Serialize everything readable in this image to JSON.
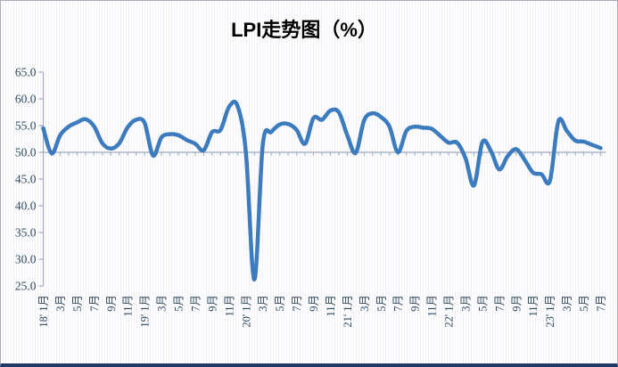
{
  "title": "LPI走势图（%）",
  "frame": {
    "border_color": "#aaaacc",
    "bottom_bar_color": "#1f3864",
    "background_stripe_color": "#f1f1f7"
  },
  "chart_data": {
    "type": "line",
    "title": "LPI走势图（%）",
    "series_name": "LPI",
    "unit": "%",
    "x_interval": "monthly",
    "x_start": "18'1月",
    "x_end": "23'7月",
    "x_tick_labels": [
      "18' 1月",
      "3月",
      "5月",
      "7月",
      "9月",
      "11月",
      "19' 1月",
      "3月",
      "5月",
      "7月",
      "9月",
      "11月",
      "20' 1月",
      "3月",
      "5月",
      "7月",
      "9月",
      "11月",
      "21' 1月",
      "3月",
      "5月",
      "7月",
      "9月",
      "11月",
      "22' 1月",
      "3月",
      "5月",
      "7月",
      "9月",
      "11月",
      "23' 1月",
      "3月",
      "5月",
      "7月"
    ],
    "x_label_every_n_months": 2,
    "values": [
      54.5,
      49.8,
      53.2,
      54.8,
      55.6,
      56.2,
      54.9,
      51.7,
      50.7,
      51.7,
      54.7,
      56.1,
      55.5,
      49.4,
      52.8,
      53.4,
      53.2,
      52.3,
      51.6,
      50.4,
      53.8,
      54.2,
      58.5,
      58.7,
      49.9,
      26.2,
      51.5,
      53.8,
      55.2,
      55.3,
      54.2,
      51.6,
      56.4,
      56.1,
      57.8,
      57.5,
      53.2,
      49.9,
      56.0,
      57.3,
      56.6,
      54.8,
      50.0,
      54.0,
      54.8,
      54.6,
      54.4,
      53.1,
      51.8,
      51.8,
      48.9,
      43.8,
      51.9,
      50.3,
      46.8,
      49.3,
      50.6,
      48.6,
      46.2,
      45.9,
      44.7,
      55.8,
      54.0,
      52.2,
      52.0,
      51.4,
      50.8
    ],
    "ylim": [
      25.0,
      65.0
    ],
    "y_tick_step": 5.0,
    "y_tick_labels": [
      "25.0",
      "30.0",
      "35.0",
      "40.0",
      "45.0",
      "50.0",
      "55.0",
      "60.0",
      "65.0"
    ],
    "category_axis_crosses_at": 50.0,
    "grid": "off",
    "legend": "none",
    "line_color": "#3c7bbe",
    "axis_color": "#a0a8c0",
    "tick_color": "#8fb6bc",
    "label_color": "#2e4a5f"
  }
}
